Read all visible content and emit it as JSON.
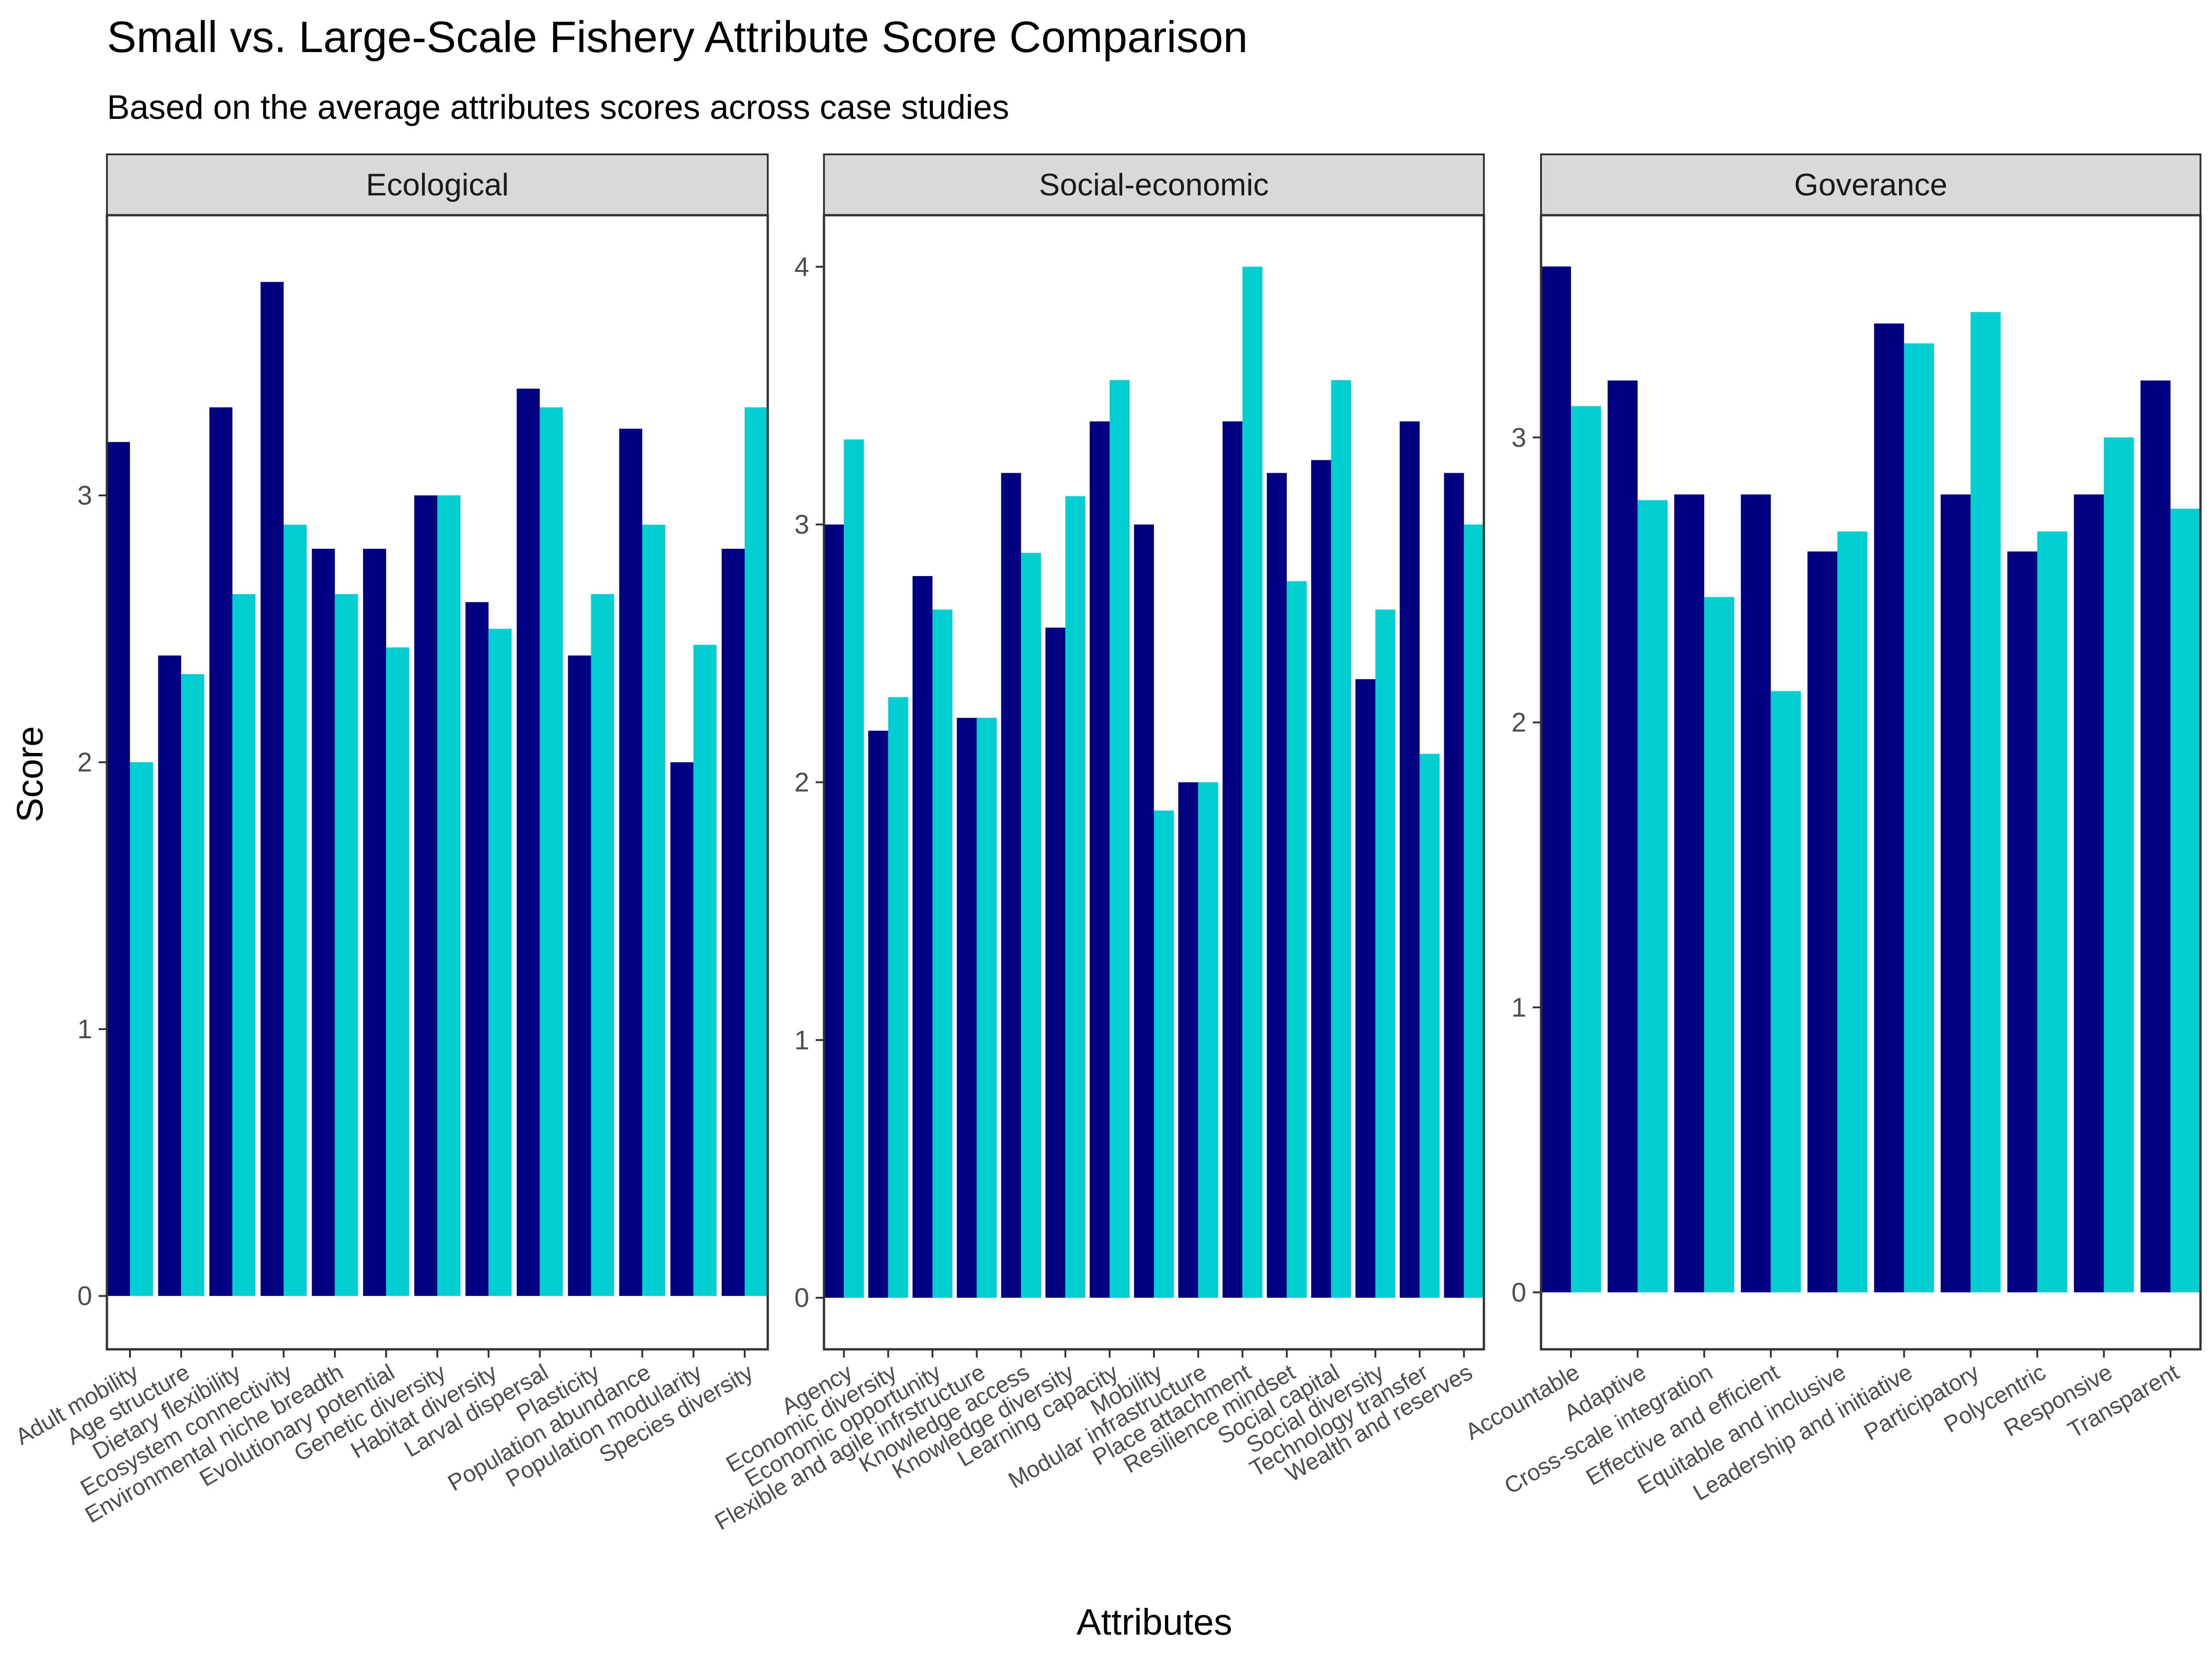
{
  "chart_data": {
    "type": "bar",
    "title": "Small vs. Large-Scale Fishery Attribute Score Comparison",
    "subtitle": "Based on the average attributes scores across case studies",
    "xlabel": "Attributes",
    "ylabel": "Score",
    "colors": {
      "series_1": "#000080",
      "series_2": "#00CED1"
    },
    "panels": [
      {
        "name": "Ecological",
        "ylim": [
          -0.2,
          4.05
        ],
        "yticks": [
          0,
          1,
          2,
          3
        ],
        "categories": [
          "Adult mobility",
          "Age structure",
          "Dietary flexibility",
          "Ecosystem connectivity",
          "Environmental niche breadth",
          "Evolutionary potential",
          "Genetic diversity",
          "Habitat diversity",
          "Larval dispersal",
          "Plasticity",
          "Population abundance",
          "Population modularity",
          "Species diversity"
        ],
        "series": [
          {
            "values": [
              3.2,
              2.4,
              3.33,
              3.8,
              2.8,
              2.8,
              3.0,
              2.6,
              3.4,
              2.4,
              3.25,
              2.0,
              2.8
            ]
          },
          {
            "values": [
              2.0,
              2.33,
              2.63,
              2.89,
              2.63,
              2.43,
              3.0,
              2.5,
              3.33,
              2.63,
              2.89,
              2.44,
              3.33
            ]
          }
        ]
      },
      {
        "name": "Social-economic",
        "ylim": [
          -0.2,
          4.2
        ],
        "yticks": [
          0,
          1,
          2,
          3,
          4
        ],
        "categories": [
          "Agency",
          "Economic diversity",
          "Economic opportunity",
          "Flexible and agile infrstructure",
          "Knowledge access",
          "Knowledge diversity",
          "Learning capacity",
          "Mobility",
          "Modular infrastructure",
          "Place attachment",
          "Resilience mindset",
          "Social capital",
          "Social diversity",
          "Technology transfer",
          "Wealth and reserves"
        ],
        "series": [
          {
            "values": [
              3.0,
              2.2,
              2.8,
              2.25,
              3.2,
              2.6,
              3.4,
              3.0,
              2.0,
              3.4,
              3.2,
              3.25,
              2.4,
              3.4,
              3.2
            ]
          },
          {
            "values": [
              3.33,
              2.33,
              2.67,
              2.25,
              2.89,
              3.11,
              3.56,
              1.89,
              2.0,
              4.0,
              2.78,
              3.56,
              2.67,
              2.11,
              3.0
            ]
          }
        ]
      },
      {
        "name": "Goverance",
        "ylim": [
          -0.2,
          3.78
        ],
        "yticks": [
          0,
          1,
          2,
          3
        ],
        "categories": [
          "Accountable",
          "Adaptive",
          "Cross-scale integration",
          "Effective and efficient",
          "Equitable and inclusive",
          "Leadership and initiative",
          "Participatory",
          "Polycentric",
          "Responsive",
          "Transparent"
        ],
        "series": [
          {
            "values": [
              3.6,
              3.2,
              2.8,
              2.8,
              2.6,
              3.4,
              2.8,
              2.6,
              2.8,
              3.2
            ]
          },
          {
            "values": [
              3.11,
              2.78,
              2.44,
              2.11,
              2.67,
              3.33,
              3.44,
              2.67,
              3.0,
              2.75
            ]
          }
        ]
      }
    ]
  }
}
